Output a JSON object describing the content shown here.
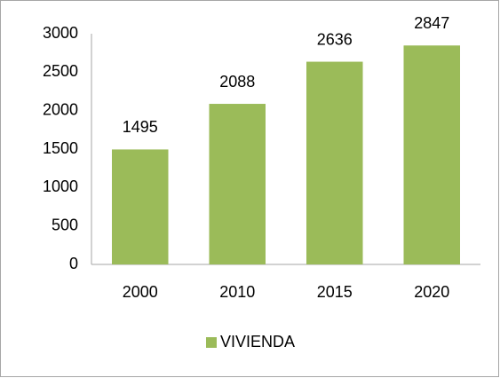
{
  "chart_data": {
    "type": "bar",
    "categories": [
      "2000",
      "2010",
      "2015",
      "2020"
    ],
    "series": [
      {
        "name": "VIVIENDA",
        "color": "#9bbb59",
        "values": [
          1495,
          2088,
          2636,
          2847
        ]
      }
    ],
    "ylim": [
      0,
      3000
    ],
    "yticks": [
      0,
      500,
      1000,
      1500,
      2000,
      2500,
      3000
    ],
    "grid": false,
    "data_labels": true,
    "legend": "bottom"
  }
}
